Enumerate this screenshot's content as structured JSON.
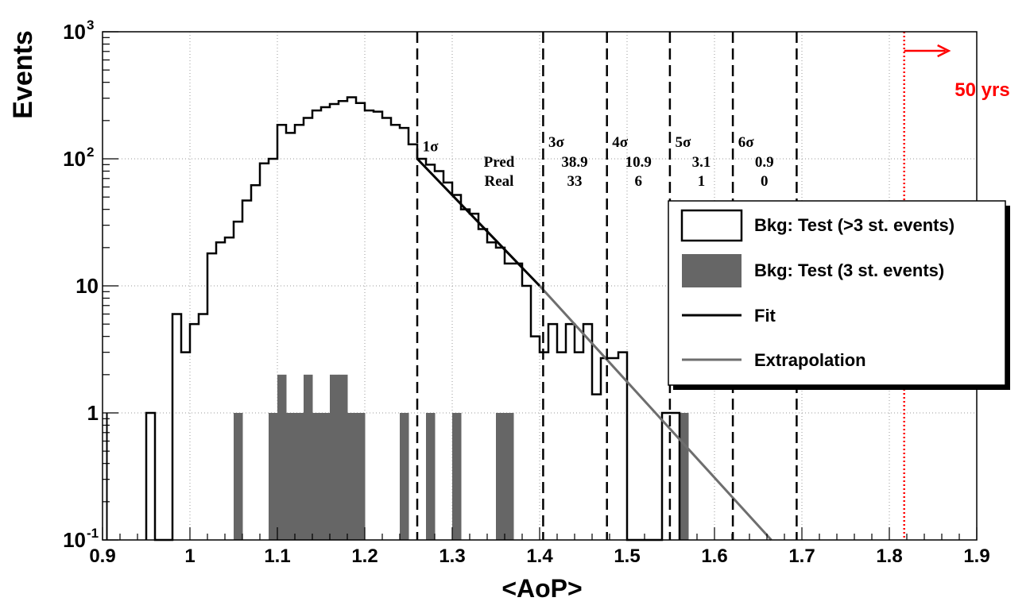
{
  "chart_data": {
    "type": "bar",
    "title": "",
    "xlabel": "<AoP>",
    "ylabel": "Events",
    "x_range": [
      0.9,
      1.9
    ],
    "y_range": [
      0.1,
      1000
    ],
    "y_scale": "log",
    "grid": true,
    "x_ticks": [
      "0.9",
      "1",
      "1.1",
      "1.2",
      "1.3",
      "1.4",
      "1.5",
      "1.6",
      "1.7",
      "1.8",
      "1.9"
    ],
    "y_ticks": [
      {
        "value": 0.1,
        "base": "10",
        "exp": "-1"
      },
      {
        "value": 1,
        "base": "1",
        "exp": ""
      },
      {
        "value": 10,
        "base": "10",
        "exp": ""
      },
      {
        "value": 100,
        "base": "10",
        "exp": "2"
      },
      {
        "value": 1000,
        "base": "10",
        "exp": "3"
      }
    ],
    "bin_width": 0.01,
    "series": [
      {
        "name": "Bkg: Test (>3 st. events)",
        "style": "outline",
        "color": "#000000",
        "bins": [
          [
            0.95,
            1
          ],
          [
            0.98,
            6
          ],
          [
            0.99,
            3
          ],
          [
            1.0,
            5
          ],
          [
            1.01,
            6
          ],
          [
            1.02,
            18
          ],
          [
            1.03,
            22
          ],
          [
            1.04,
            24
          ],
          [
            1.05,
            32
          ],
          [
            1.06,
            47
          ],
          [
            1.07,
            62
          ],
          [
            1.08,
            92
          ],
          [
            1.09,
            100
          ],
          [
            1.1,
            185
          ],
          [
            1.11,
            160
          ],
          [
            1.12,
            185
          ],
          [
            1.13,
            210
          ],
          [
            1.14,
            240
          ],
          [
            1.15,
            255
          ],
          [
            1.16,
            270
          ],
          [
            1.17,
            285
          ],
          [
            1.18,
            305
          ],
          [
            1.19,
            275
          ],
          [
            1.2,
            240
          ],
          [
            1.21,
            235
          ],
          [
            1.22,
            210
          ],
          [
            1.23,
            185
          ],
          [
            1.24,
            175
          ],
          [
            1.25,
            130
          ],
          [
            1.26,
            100
          ],
          [
            1.27,
            90
          ],
          [
            1.28,
            80
          ],
          [
            1.29,
            65
          ],
          [
            1.3,
            52
          ],
          [
            1.31,
            40
          ],
          [
            1.32,
            37
          ],
          [
            1.33,
            28
          ],
          [
            1.34,
            22
          ],
          [
            1.35,
            20
          ],
          [
            1.36,
            15
          ],
          [
            1.37,
            15
          ],
          [
            1.38,
            10
          ],
          [
            1.39,
            4
          ],
          [
            1.4,
            3
          ],
          [
            1.41,
            5
          ],
          [
            1.42,
            3
          ],
          [
            1.43,
            5
          ],
          [
            1.44,
            3
          ],
          [
            1.45,
            5
          ],
          [
            1.46,
            1.4
          ],
          [
            1.47,
            2.7
          ],
          [
            1.48,
            2.7
          ],
          [
            1.49,
            3
          ],
          [
            1.54,
            1
          ],
          [
            1.55,
            1
          ]
        ]
      },
      {
        "name": "Bkg: Test (3 st. events)",
        "style": "filled",
        "color": "#666666",
        "bins": [
          [
            1.05,
            1
          ],
          [
            1.09,
            1
          ],
          [
            1.1,
            2
          ],
          [
            1.11,
            1
          ],
          [
            1.12,
            1
          ],
          [
            1.13,
            2
          ],
          [
            1.14,
            1
          ],
          [
            1.15,
            1
          ],
          [
            1.16,
            2
          ],
          [
            1.17,
            2
          ],
          [
            1.18,
            1
          ],
          [
            1.19,
            1
          ],
          [
            1.24,
            1
          ],
          [
            1.27,
            1
          ],
          [
            1.3,
            1
          ],
          [
            1.35,
            1
          ],
          [
            1.36,
            1
          ],
          [
            1.56,
            1
          ]
        ]
      },
      {
        "name": "Fit",
        "style": "line",
        "color": "#000000",
        "points": [
          [
            1.26,
            100
          ],
          [
            1.4,
            10
          ]
        ]
      },
      {
        "name": "Extrapolation",
        "style": "line",
        "color": "#6e6e6e",
        "points": [
          [
            1.4,
            10
          ],
          [
            1.665,
            0.1
          ]
        ]
      }
    ],
    "sigma_lines": [
      1.26,
      1.404,
      1.477,
      1.549,
      1.621,
      1.694
    ],
    "sigma_labels": [
      {
        "x": 1.266,
        "y": 125,
        "text": "1σ"
      },
      {
        "x": 1.41,
        "y": 135,
        "text": "3σ"
      },
      {
        "x": 1.483,
        "y": 135,
        "text": "4σ"
      },
      {
        "x": 1.555,
        "y": 135,
        "text": "5σ"
      },
      {
        "x": 1.627,
        "y": 135,
        "text": "6σ"
      }
    ],
    "table": {
      "pred_label": "Pred",
      "real_label": "Real",
      "columns": [
        {
          "x": 1.44,
          "pred": "38.9",
          "real": "33"
        },
        {
          "x": 1.513,
          "pred": "10.9",
          "real": "6"
        },
        {
          "x": 1.585,
          "pred": "3.1",
          "real": "1"
        },
        {
          "x": 1.657,
          "pred": "0.9",
          "real": "0"
        }
      ]
    },
    "marker": {
      "x": 1.817,
      "label": "50 yrs",
      "color": "#ff0000"
    },
    "legend": {
      "position": "right",
      "entries": [
        {
          "label": "Bkg: Test (>3 st. events)",
          "kind": "box-outline"
        },
        {
          "label": "Bkg: Test (3 st. events)",
          "kind": "box-filled"
        },
        {
          "label": "Fit",
          "kind": "line-black"
        },
        {
          "label": "Extrapolation",
          "kind": "line-gray"
        }
      ]
    }
  }
}
